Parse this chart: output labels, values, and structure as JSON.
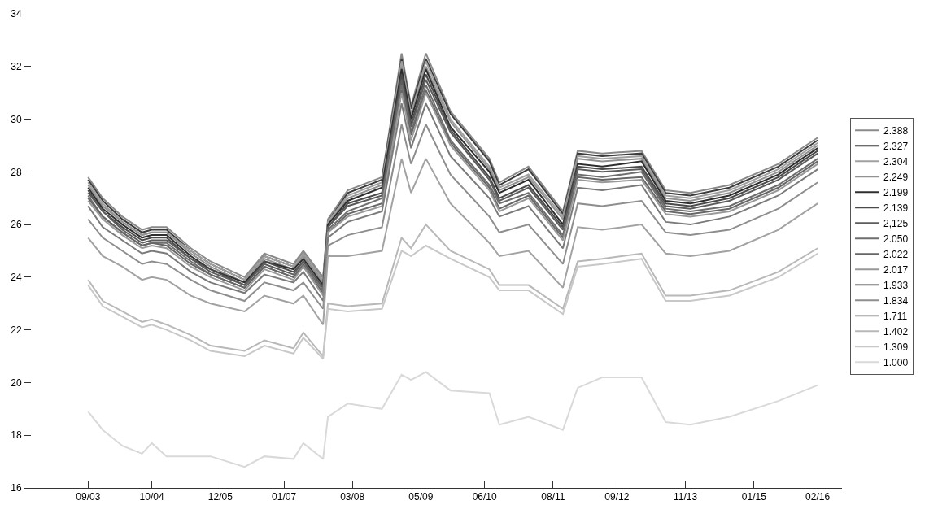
{
  "chart_data": {
    "type": "line",
    "legend": "right",
    "grid": false,
    "line_style": "solid",
    "marker": "none",
    "xlim": [
      "2002-08",
      "2016-07"
    ],
    "xticks": [
      {
        "value": "2003-09",
        "label": "09/03"
      },
      {
        "value": "2004-10",
        "label": "10/04"
      },
      {
        "value": "2005-12",
        "label": "12/05"
      },
      {
        "value": "2007-01",
        "label": "01/07"
      },
      {
        "value": "2008-03",
        "label": "03/08"
      },
      {
        "value": "2009-05",
        "label": "05/09"
      },
      {
        "value": "2010-06",
        "label": "06/10"
      },
      {
        "value": "2011-08",
        "label": "08/11"
      },
      {
        "value": "2012-09",
        "label": "09/12"
      },
      {
        "value": "2013-11",
        "label": "11/13"
      },
      {
        "value": "2015-01",
        "label": "01/15"
      },
      {
        "value": "2016-02",
        "label": "02/16"
      }
    ],
    "ylim": [
      16,
      34
    ],
    "yticks": [
      16,
      18,
      20,
      22,
      24,
      26,
      28,
      30,
      32,
      34
    ],
    "x": [
      "2003-09",
      "2003-12",
      "2004-04",
      "2004-08",
      "2004-10",
      "2005-01",
      "2005-06",
      "2005-10",
      "2006-05",
      "2006-09",
      "2007-03",
      "2007-05",
      "2007-09",
      "2007-10",
      "2008-02",
      "2008-09",
      "2009-01",
      "2009-03",
      "2009-06",
      "2009-11",
      "2010-07",
      "2010-09",
      "2011-03",
      "2011-10",
      "2012-01",
      "2012-06",
      "2013-02",
      "2013-07",
      "2013-12",
      "2014-08",
      "2015-06",
      "2016-02"
    ],
    "series": [
      {
        "name": "2.388",
        "color": "#8a8a8a",
        "values": [
          27.8,
          27.0,
          26.3,
          25.8,
          25.9,
          25.9,
          25.1,
          24.6,
          24.0,
          24.9,
          24.5,
          25.0,
          24.0,
          26.2,
          27.3,
          27.8,
          32.5,
          30.5,
          32.5,
          30.3,
          28.5,
          27.6,
          28.2,
          26.5,
          28.8,
          28.7,
          28.8,
          27.3,
          27.2,
          27.5,
          28.3,
          29.3
        ]
      },
      {
        "name": "2.327",
        "color": "#3c3c3c",
        "values": [
          27.7,
          26.9,
          26.2,
          25.7,
          25.8,
          25.8,
          25.0,
          24.5,
          23.9,
          24.8,
          24.4,
          24.9,
          23.9,
          26.1,
          27.2,
          27.7,
          32.3,
          30.4,
          32.3,
          30.2,
          28.4,
          27.5,
          28.1,
          26.4,
          28.7,
          28.6,
          28.7,
          27.2,
          27.1,
          27.4,
          28.2,
          29.2
        ]
      },
      {
        "name": "2.304",
        "color": "#a0a0a0",
        "values": [
          27.6,
          26.8,
          26.1,
          25.6,
          25.7,
          25.7,
          25.0,
          24.5,
          23.9,
          24.8,
          24.4,
          24.9,
          23.9,
          26.1,
          27.1,
          27.6,
          32.2,
          30.2,
          32.2,
          30.0,
          28.2,
          27.4,
          27.9,
          26.3,
          28.6,
          28.5,
          28.6,
          27.1,
          27.0,
          27.3,
          28.1,
          29.1
        ]
      },
      {
        "name": "2.249",
        "color": "#929292",
        "values": [
          27.5,
          26.7,
          26.1,
          25.6,
          25.7,
          25.7,
          24.9,
          24.4,
          23.8,
          24.7,
          24.3,
          24.8,
          23.8,
          26.0,
          27.0,
          27.5,
          32.0,
          30.1,
          32.0,
          29.9,
          28.1,
          27.3,
          27.8,
          26.2,
          28.5,
          28.4,
          28.5,
          27.0,
          26.9,
          27.2,
          28.0,
          29.0
        ]
      },
      {
        "name": "2.199",
        "color": "#2e2e2e",
        "values": [
          27.4,
          26.6,
          26.0,
          25.5,
          25.6,
          25.6,
          24.8,
          24.3,
          23.8,
          24.6,
          24.3,
          24.7,
          23.7,
          26.0,
          26.9,
          27.4,
          31.9,
          30.0,
          31.9,
          29.7,
          28.0,
          27.2,
          27.7,
          26.0,
          28.3,
          28.2,
          28.4,
          26.9,
          26.8,
          27.1,
          27.9,
          28.9
        ]
      },
      {
        "name": "2.139",
        "color": "#4a4a4a",
        "values": [
          27.3,
          26.5,
          25.9,
          25.4,
          25.5,
          25.5,
          24.7,
          24.3,
          23.7,
          24.6,
          24.2,
          24.6,
          23.6,
          25.9,
          26.8,
          27.2,
          31.7,
          29.8,
          31.7,
          29.6,
          27.8,
          27.0,
          27.5,
          25.9,
          28.2,
          28.1,
          28.2,
          26.8,
          26.7,
          27.0,
          27.8,
          28.8
        ]
      },
      {
        "name": "2,125",
        "color": "#5c5c5c",
        "values": [
          27.2,
          26.5,
          25.8,
          25.3,
          25.4,
          25.4,
          24.7,
          24.2,
          23.7,
          24.5,
          24.1,
          24.6,
          23.6,
          25.9,
          26.7,
          27.1,
          31.5,
          29.7,
          31.5,
          29.5,
          27.7,
          26.9,
          27.4,
          25.8,
          28.1,
          28.0,
          28.1,
          26.7,
          26.6,
          26.9,
          27.7,
          28.7
        ]
      },
      {
        "name": "2.050",
        "color": "#6e6e6e",
        "values": [
          27.1,
          26.3,
          25.7,
          25.2,
          25.3,
          25.3,
          24.6,
          24.1,
          23.6,
          24.4,
          24.0,
          24.5,
          23.5,
          25.8,
          26.5,
          27.0,
          31.3,
          29.5,
          31.3,
          29.2,
          27.5,
          26.8,
          27.2,
          25.6,
          27.9,
          27.8,
          28.0,
          26.6,
          26.5,
          26.7,
          27.5,
          28.5
        ]
      },
      {
        "name": "2.022",
        "color": "#666666",
        "values": [
          27.0,
          26.3,
          25.7,
          25.2,
          25.3,
          25.2,
          24.5,
          24.1,
          23.6,
          24.4,
          24.0,
          24.4,
          23.4,
          25.7,
          26.4,
          26.8,
          31.1,
          29.4,
          31.1,
          29.1,
          27.4,
          26.6,
          27.1,
          25.5,
          27.8,
          27.7,
          27.8,
          26.5,
          26.4,
          26.6,
          27.4,
          28.4
        ]
      },
      {
        "name": "2.017",
        "color": "#999999",
        "values": [
          26.9,
          26.2,
          25.6,
          25.1,
          25.2,
          25.1,
          24.4,
          24.0,
          23.5,
          24.3,
          23.9,
          24.4,
          23.3,
          25.7,
          26.3,
          26.7,
          31.0,
          29.2,
          31.0,
          29.0,
          27.3,
          26.5,
          27.0,
          25.4,
          27.7,
          27.6,
          27.7,
          26.4,
          26.3,
          26.5,
          27.3,
          28.3
        ]
      },
      {
        "name": "1.933",
        "color": "#7a7a7a",
        "values": [
          26.7,
          25.9,
          25.4,
          24.9,
          25.0,
          24.9,
          24.2,
          23.8,
          23.4,
          24.1,
          23.8,
          24.2,
          23.1,
          25.5,
          26.1,
          26.5,
          30.6,
          28.9,
          30.6,
          28.6,
          27.0,
          26.3,
          26.7,
          25.1,
          27.4,
          27.3,
          27.5,
          26.1,
          26.0,
          26.3,
          27.1,
          28.1
        ]
      },
      {
        "name": "1.834",
        "color": "#8e8e8e",
        "values": [
          26.2,
          25.5,
          25.0,
          24.5,
          24.6,
          24.5,
          23.9,
          23.5,
          23.1,
          23.8,
          23.5,
          23.8,
          22.8,
          25.2,
          25.6,
          25.9,
          29.8,
          28.3,
          29.8,
          27.9,
          26.3,
          25.7,
          26.0,
          24.5,
          26.8,
          26.7,
          26.9,
          25.7,
          25.6,
          25.8,
          26.6,
          27.6
        ]
      },
      {
        "name": "1.711",
        "color": "#a2a2a2",
        "values": [
          25.5,
          24.8,
          24.4,
          23.9,
          24.0,
          23.9,
          23.3,
          23.0,
          22.7,
          23.3,
          23.0,
          23.3,
          22.2,
          24.8,
          24.8,
          25.0,
          28.5,
          27.2,
          28.5,
          26.8,
          25.3,
          24.8,
          25.0,
          23.6,
          25.9,
          25.8,
          26.0,
          24.9,
          24.8,
          25.0,
          25.8,
          26.8
        ]
      },
      {
        "name": "1.402",
        "color": "#b8b8b8",
        "values": [
          23.9,
          23.1,
          22.7,
          22.3,
          22.4,
          22.2,
          21.8,
          21.4,
          21.2,
          21.6,
          21.3,
          21.9,
          21.0,
          23.0,
          22.9,
          23.0,
          25.5,
          25.1,
          26.0,
          25.0,
          24.3,
          23.7,
          23.7,
          22.8,
          24.6,
          24.7,
          24.9,
          23.3,
          23.3,
          23.5,
          24.2,
          25.1
        ]
      },
      {
        "name": "1.309",
        "color": "#c8c8c8",
        "values": [
          23.7,
          22.9,
          22.5,
          22.1,
          22.2,
          22.0,
          21.6,
          21.2,
          21.0,
          21.4,
          21.1,
          21.7,
          20.9,
          22.8,
          22.7,
          22.8,
          25.0,
          24.8,
          25.2,
          24.7,
          24.0,
          23.5,
          23.5,
          22.6,
          24.4,
          24.5,
          24.7,
          23.1,
          23.1,
          23.3,
          24.0,
          24.9
        ]
      },
      {
        "name": "1.000",
        "color": "#d9d9d9",
        "values": [
          18.9,
          18.2,
          17.6,
          17.3,
          17.7,
          17.2,
          17.2,
          17.2,
          16.8,
          17.2,
          17.1,
          17.7,
          17.1,
          18.7,
          19.2,
          19.0,
          20.3,
          20.1,
          20.4,
          19.7,
          19.6,
          18.4,
          18.7,
          18.2,
          19.8,
          20.2,
          20.2,
          18.5,
          18.4,
          18.7,
          19.3,
          19.9
        ]
      }
    ]
  }
}
